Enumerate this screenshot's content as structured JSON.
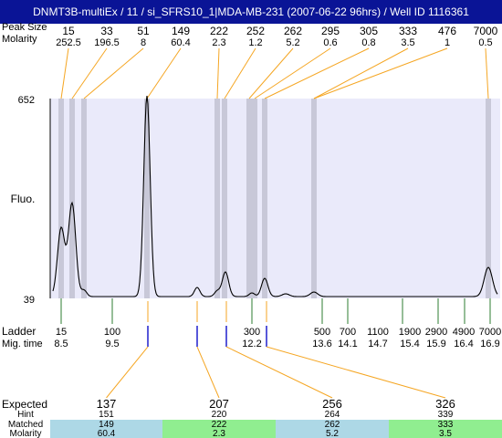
{
  "title": "DNMT3B-multiEx / 11 / si_SFRS10_1|MDA-MB-231 (2007-06-22 96hrs) / Well ID 1116361",
  "row_labels": {
    "peak_size": "Peak Size",
    "molarity": "Molarity",
    "fluo": "Fluo.",
    "ladder": "Ladder",
    "mig_time": "Mig. time"
  },
  "colors": {
    "title_bg": "#0a1496",
    "plot_bg": "#eaeafa",
    "band": "#c8c8d8",
    "ladder_tick": "#2e7d32",
    "connector": "#f5a623",
    "marker": "#1f1fcc",
    "expected_red": "#e02020",
    "cell_blue": "#add8e6",
    "cell_green": "#90ee90"
  },
  "chart_data": {
    "type": "line",
    "ylim": [
      39,
      652
    ],
    "ytick_labels": [
      "652",
      "39"
    ],
    "ylabel": "Fluo.",
    "peaks": [
      {
        "size": "15",
        "molarity": "252.5"
      },
      {
        "size": "33",
        "molarity": "196.5"
      },
      {
        "size": "51",
        "molarity": "8"
      },
      {
        "size": "149",
        "molarity": "60.4"
      },
      {
        "size": "222",
        "molarity": "2.3"
      },
      {
        "size": "252",
        "molarity": "1.2"
      },
      {
        "size": "262",
        "molarity": "5.2"
      },
      {
        "size": "295",
        "molarity": "0.6"
      },
      {
        "size": "305",
        "molarity": "0.8"
      },
      {
        "size": "333",
        "molarity": "3.5"
      },
      {
        "size": "476",
        "molarity": "1"
      },
      {
        "size": "7000",
        "molarity": "0.5"
      }
    ],
    "ladder": [
      {
        "size": "15",
        "time": "8.5"
      },
      {
        "size": "100",
        "time": "9.5"
      },
      {
        "size": "300",
        "time": "12.2"
      },
      {
        "size": "500",
        "time": "13.6"
      },
      {
        "size": "700",
        "time": "14.1"
      },
      {
        "size": "1100",
        "time": "14.7"
      },
      {
        "size": "1900",
        "time": "15.4"
      },
      {
        "size": "2900",
        "time": "15.9"
      },
      {
        "size": "4900",
        "time": "16.4"
      },
      {
        "size": "7000",
        "time": "16.9"
      }
    ]
  },
  "table": {
    "labels": {
      "expected": "Expected",
      "hint": "Hint",
      "matched": "Matched",
      "molarity": "Molarity"
    },
    "columns": [
      {
        "expected": "137",
        "hint": "151",
        "matched": "149",
        "molarity": "60.4"
      },
      {
        "expected": "207",
        "hint": "220",
        "matched": "222",
        "molarity": "2.3"
      },
      {
        "expected": "256",
        "hint": "264",
        "matched": "262",
        "molarity": "5.2"
      },
      {
        "expected": "326",
        "hint": "339",
        "matched": "333",
        "molarity": "3.5"
      }
    ]
  }
}
